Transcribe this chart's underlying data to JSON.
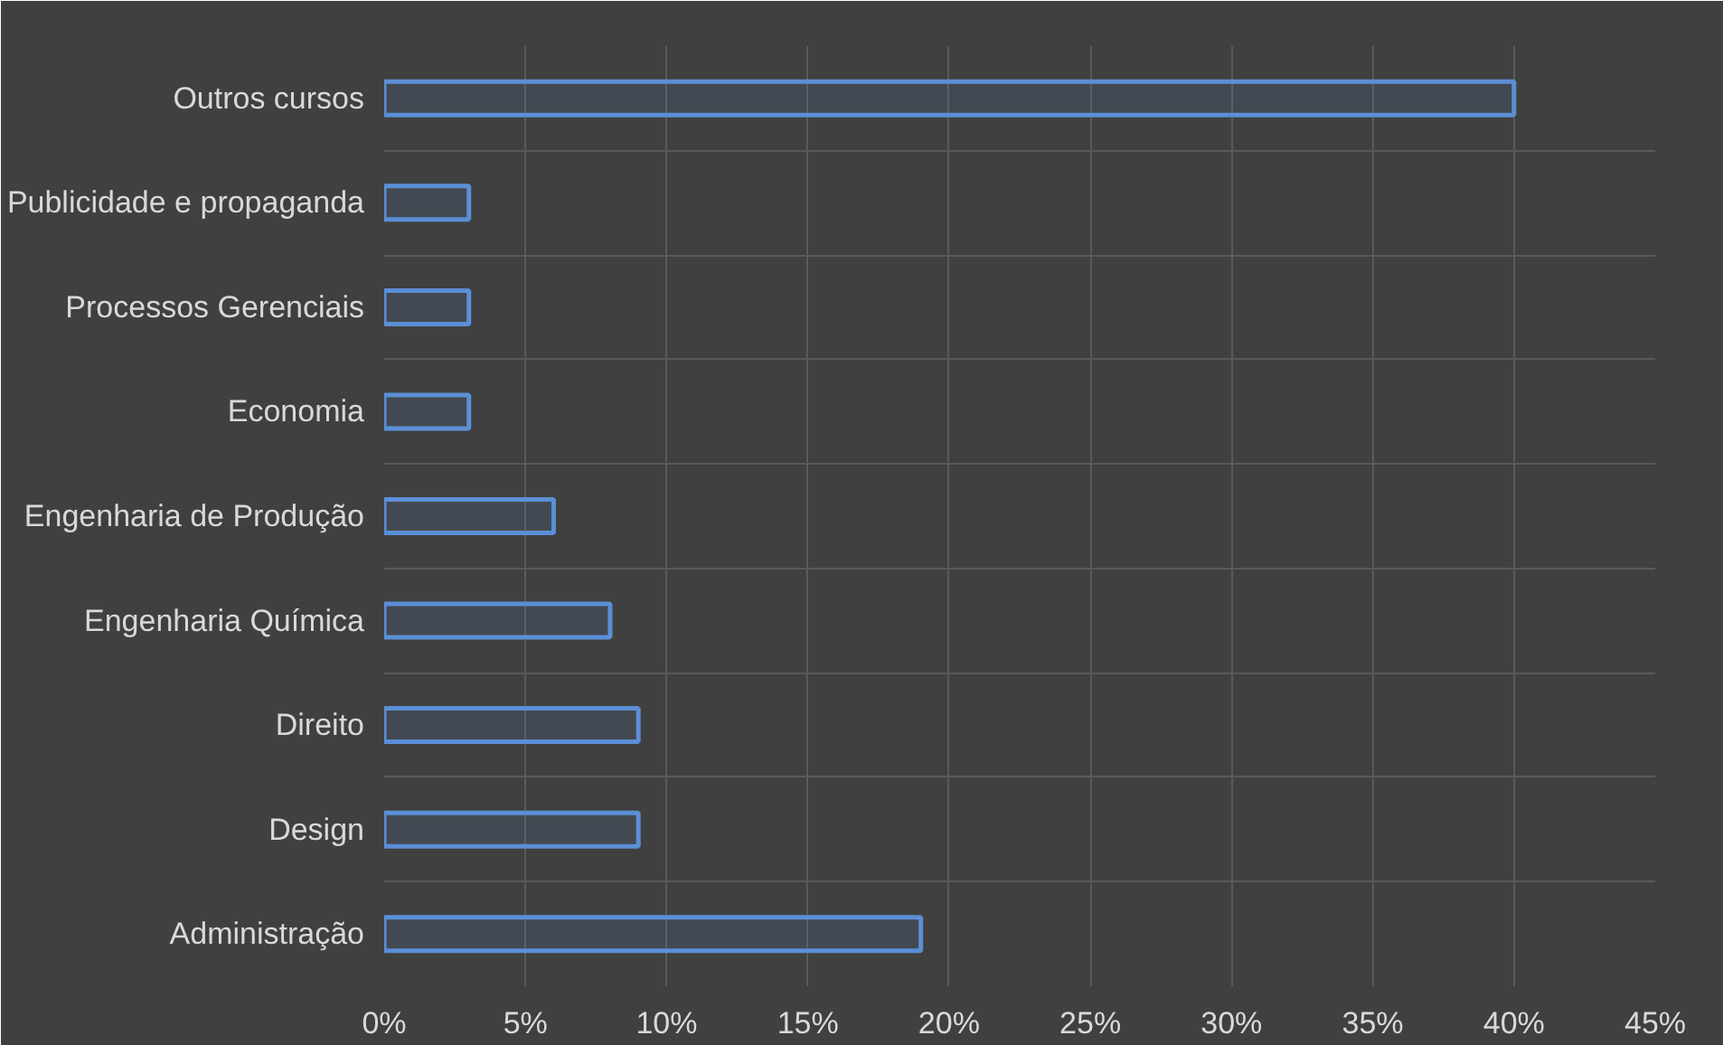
{
  "chart_data": {
    "type": "bar",
    "orientation": "horizontal",
    "categories": [
      "Outros cursos",
      "Publicidade e propaganda",
      "Processos Gerenciais",
      "Economia",
      "Engenharia de Produção",
      "Engenharia Química",
      "Direito",
      "Design",
      "Administração"
    ],
    "values": [
      40,
      3,
      3,
      3,
      6,
      8,
      9,
      9,
      19
    ],
    "color": "#5b8fd6",
    "xlim": [
      0,
      45
    ],
    "xticks": [
      {
        "value": 0,
        "label": "0%"
      },
      {
        "value": 5,
        "label": "5%"
      },
      {
        "value": 10,
        "label": "10%"
      },
      {
        "value": 15,
        "label": "15%"
      },
      {
        "value": 20,
        "label": "20%"
      },
      {
        "value": 25,
        "label": "25%"
      },
      {
        "value": 30,
        "label": "30%"
      },
      {
        "value": 35,
        "label": "35%"
      },
      {
        "value": 40,
        "label": "40%"
      },
      {
        "value": 45,
        "label": "45%"
      }
    ],
    "grid": true
  }
}
